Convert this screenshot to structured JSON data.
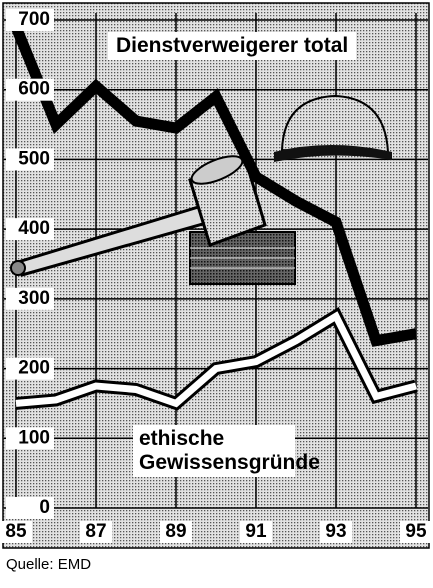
{
  "chart_data": {
    "type": "line",
    "source": "Quelle: EMD",
    "x": [
      85,
      86,
      87,
      88,
      89,
      90,
      91,
      92,
      93,
      94,
      95
    ],
    "series": [
      {
        "name": "Dienstverweigerer total",
        "color": "#000000",
        "values": [
          690,
          550,
          605,
          555,
          545,
          590,
          475,
          440,
          410,
          240,
          250
        ]
      },
      {
        "name": "ethische Gewissensgründe",
        "color": "#ffffff",
        "values": [
          150,
          155,
          175,
          170,
          150,
          200,
          210,
          240,
          275,
          160,
          175
        ]
      }
    ],
    "xlim": [
      84.7,
      95.3
    ],
    "xticks": [
      85,
      87,
      89,
      91,
      93,
      95
    ],
    "ylim": [
      0,
      710
    ],
    "yticks": [
      0,
      100,
      200,
      300,
      400,
      500,
      600,
      700
    ],
    "grid": true
  }
}
